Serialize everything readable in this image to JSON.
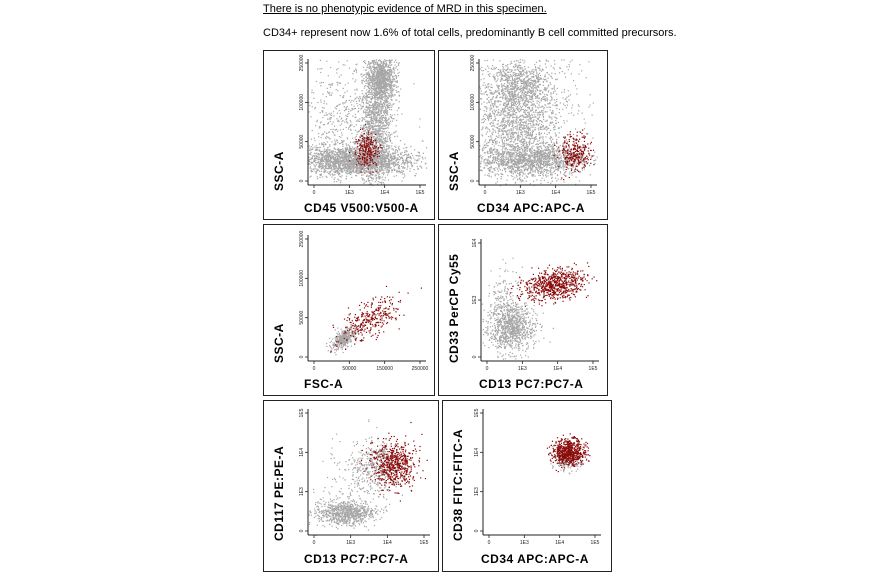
{
  "header": {
    "line1": "There is no phenotypic evidence of MRD in this specimen.",
    "line2": "CD34+ represent now 1.6% of total cells, predominantly B cell committed precursors."
  },
  "colors": {
    "population_gray": "#a6a6a6",
    "population_red": "#8b0a0a",
    "axis": "#222222"
  },
  "panels": [
    {
      "id": "p1",
      "xlabel": "CD45 V500:V500-A",
      "ylabel": "SSC-A",
      "xticks": [
        "0",
        "1E3",
        "1E4",
        "1E5"
      ],
      "yticks": [
        "250000",
        "100000",
        "50000",
        "0"
      ]
    },
    {
      "id": "p2",
      "xlabel": "CD34 APC:APC-A",
      "ylabel": "SSC-A",
      "xticks": [
        "0",
        "1E3",
        "1E4",
        "1E5"
      ],
      "yticks": [
        "250000",
        "100000",
        "50000",
        "0"
      ]
    },
    {
      "id": "p3",
      "xlabel": "FSC-A",
      "ylabel": "SSC-A",
      "xticks": [
        "0",
        "50000",
        "150000",
        "250000"
      ],
      "yticks": [
        "250000",
        "100000",
        "50000",
        "0"
      ]
    },
    {
      "id": "p4",
      "xlabel": "CD13 PC7:PC7-A",
      "ylabel": "CD33 PerCP Cy55",
      "xticks": [
        "0",
        "1E3",
        "1E4",
        "1E5"
      ],
      "yticks": [
        "1E4",
        "1E3",
        "0"
      ]
    },
    {
      "id": "p5",
      "xlabel": "CD13 PC7:PC7-A",
      "ylabel": "CD117 PE:PE-A",
      "xticks": [
        "0",
        "1E3",
        "1E4",
        "1E5"
      ],
      "yticks": [
        "1E5",
        "1E4",
        "1E3",
        "0"
      ]
    },
    {
      "id": "p6",
      "xlabel": "CD34 APC:APC-A",
      "ylabel": "CD38 FITC:FITC-A",
      "xticks": [
        "0",
        "1E3",
        "1E4",
        "1E5"
      ],
      "yticks": [
        "1E5",
        "1E4",
        "1E3",
        "0"
      ]
    }
  ]
}
